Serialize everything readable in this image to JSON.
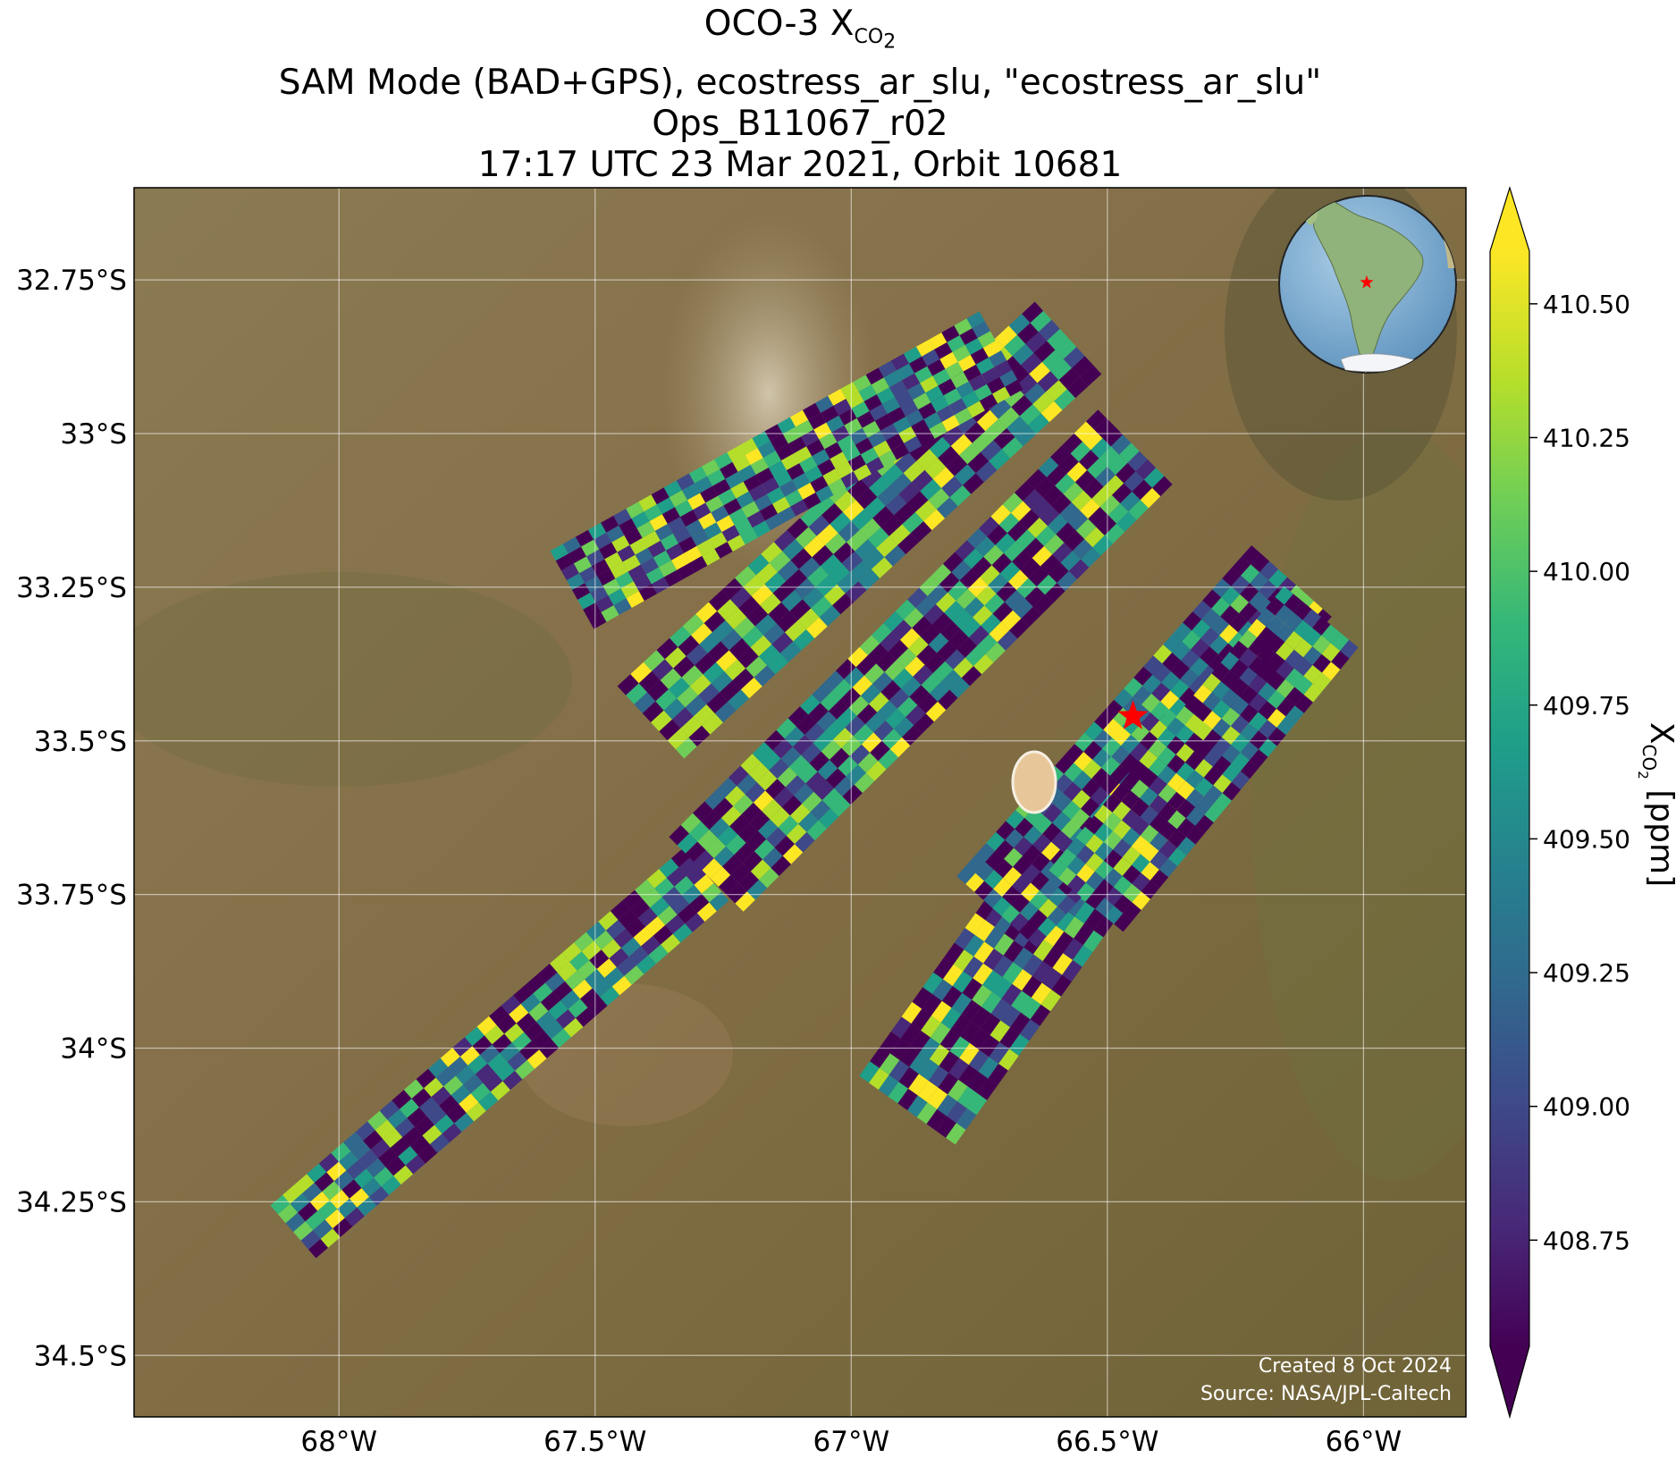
{
  "title": {
    "line1_main": "OCO-3 X",
    "line1_sub": "CO",
    "line1_subsub": "2",
    "line2": "SAM Mode (BAD+GPS), ecostress_ar_slu, \"ecostress_ar_slu\"",
    "line3": "Ops_B11067_r02",
    "line4": "17:17 UTC 23 Mar 2021, Orbit 10681"
  },
  "map": {
    "projection": "PlateCarree",
    "lon_range": [
      -68.4,
      -65.8
    ],
    "lat_range": [
      -34.6,
      -32.6
    ],
    "gridlines": true,
    "basemap": "satellite imagery (arid terrain, brown/olive)",
    "target_marker": {
      "lon": -66.45,
      "lat": -33.46,
      "symbol": "red star"
    },
    "inset_globe": {
      "position": "top-right",
      "marker": "red star"
    }
  },
  "axes": {
    "x_ticks": [
      {
        "value": -68.0,
        "label": "68°W"
      },
      {
        "value": -67.5,
        "label": "67.5°W"
      },
      {
        "value": -67.0,
        "label": "67°W"
      },
      {
        "value": -66.5,
        "label": "66.5°W"
      },
      {
        "value": -66.0,
        "label": "66°W"
      }
    ],
    "y_ticks": [
      {
        "value": -32.75,
        "label": "32.75°S"
      },
      {
        "value": -33.0,
        "label": "33°S"
      },
      {
        "value": -33.25,
        "label": "33.25°S"
      },
      {
        "value": -33.5,
        "label": "33.5°S"
      },
      {
        "value": -33.75,
        "label": "33.75°S"
      },
      {
        "value": -34.0,
        "label": "34°S"
      },
      {
        "value": -34.25,
        "label": "34.25°S"
      },
      {
        "value": -34.5,
        "label": "34.5°S"
      }
    ]
  },
  "colorbar": {
    "label_main": "X",
    "label_sub": "CO",
    "label_subsub": "2",
    "label_unit": " [ppm]",
    "colormap": "viridis",
    "vmin": 408.55,
    "vmax": 410.6,
    "extend": "both",
    "ticks": [
      "408.75",
      "409.00",
      "409.25",
      "409.50",
      "409.75",
      "410.00",
      "410.25",
      "410.50"
    ]
  },
  "footer": {
    "created": "Created 8 Oct 2024",
    "source": "Source: NASA/JPL-Caltech"
  },
  "colors": {
    "viridis": [
      "#440154",
      "#482878",
      "#3e4989",
      "#31688e",
      "#26828e",
      "#1f9e89",
      "#35b779",
      "#6ece58",
      "#b5de2b",
      "#fde725"
    ],
    "marker": "#ff0000",
    "terrain": "#7a6a45"
  }
}
